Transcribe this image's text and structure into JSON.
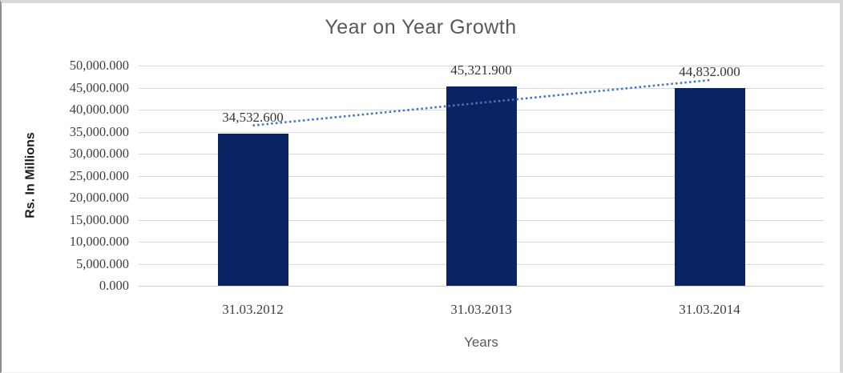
{
  "chart_data": {
    "type": "bar",
    "title": "Year on Year Growth",
    "categories": [
      "31.03.2012",
      "31.03.2013",
      "31.03.2014"
    ],
    "values": [
      34532.6,
      45321.9,
      44832.0
    ],
    "data_labels": [
      "34,532.600",
      "45,321.900",
      "44,832.000"
    ],
    "xlabel": "Years",
    "ylabel": "Rs. In Millions",
    "ylim": [
      0,
      50000
    ],
    "ytick_step": 5000,
    "ytick_labels": [
      "0.000",
      "5,000.000",
      "10,000.000",
      "15,000.000",
      "20,000.000",
      "25,000.000",
      "30,000.000",
      "35,000.000",
      "40,000.000",
      "45,000.000",
      "50,000.000"
    ],
    "grid": true,
    "legend": "none",
    "trendline": {
      "type": "linear",
      "style": "dotted"
    },
    "colors": {
      "bar": "#0a2463",
      "trendline": "#4472c4",
      "gridline": "#d9d9d9",
      "tick_text": "#3f3f3f",
      "title_text": "#595959"
    }
  }
}
